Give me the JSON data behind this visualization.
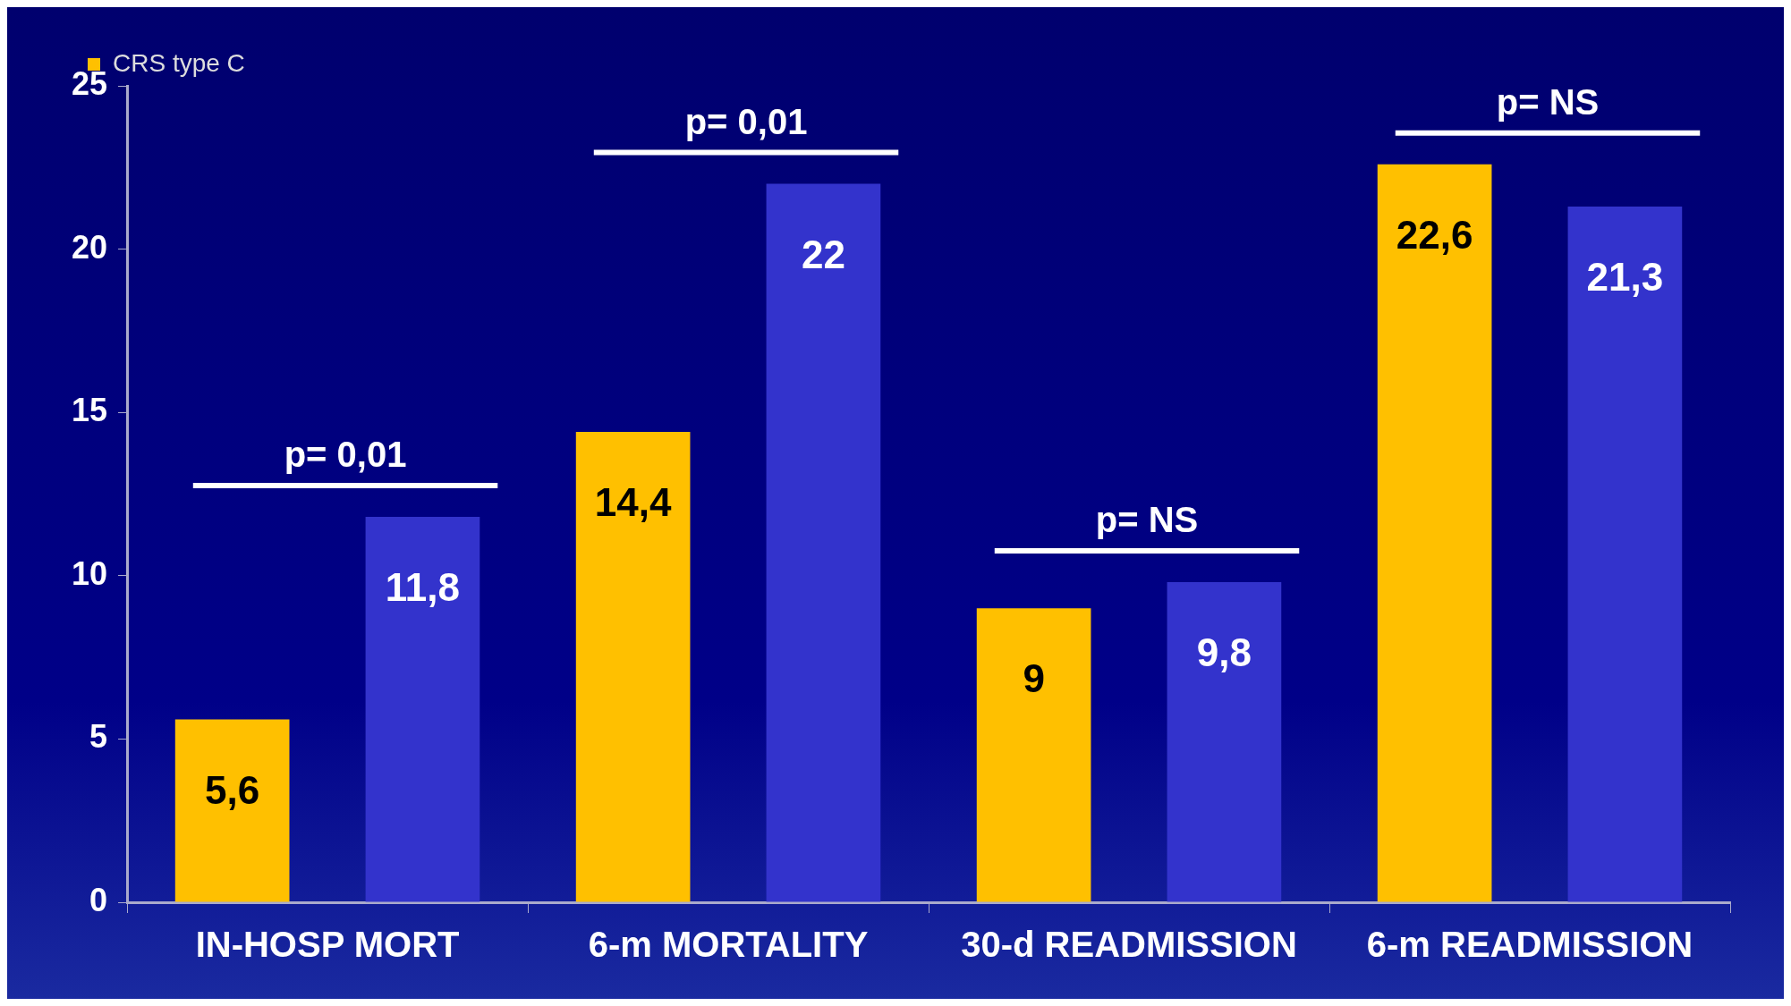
{
  "chart_data": {
    "type": "bar",
    "categories": [
      "IN-HOSP MORT",
      "6-m MORTALITY",
      "30-d READMISSION",
      "6-m READMISSION"
    ],
    "series": [
      {
        "name": "CRS type C",
        "color": "#ffc000",
        "values": [
          5.6,
          14.4,
          9,
          22.6
        ],
        "value_labels": [
          "5,6",
          "14,4",
          "9",
          "22,6"
        ]
      },
      {
        "color": "#3333cc",
        "values": [
          11.8,
          22,
          9.8,
          21.3
        ],
        "value_labels": [
          "11,8",
          "22",
          "9,8",
          "21,3"
        ]
      }
    ],
    "ylim": [
      0,
      25
    ],
    "yticks": [
      0,
      5,
      10,
      15,
      20,
      25
    ],
    "legend": "top left",
    "annotations": [
      "p= 0,01",
      "p= 0,01",
      "p= NS",
      "p= NS"
    ]
  }
}
